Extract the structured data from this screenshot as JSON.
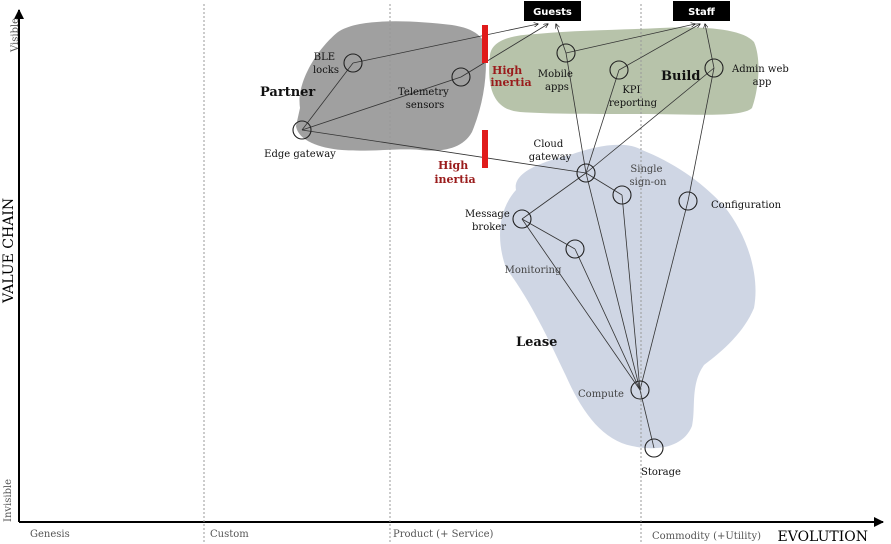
{
  "axes": {
    "x_title": "EVOLUTION",
    "y_title": "VALUE CHAIN",
    "y_top": "Visible",
    "y_bottom": "Invisible",
    "stages": [
      "Genesis",
      "Custom",
      "Product (+ Service)",
      "Commodity (+Utility)"
    ]
  },
  "regions": {
    "partner": "Partner",
    "build": "Build",
    "lease": "Lease"
  },
  "users": {
    "guests": "Guests",
    "staff": "Staff"
  },
  "inertia": {
    "top": [
      "High",
      "inertia"
    ],
    "bottom": [
      "High",
      "inertia"
    ]
  },
  "components": {
    "ble_locks": [
      "BLE",
      "locks"
    ],
    "telemetry_sensors": [
      "Telemetry",
      "sensors"
    ],
    "edge_gateway": [
      "Edge gateway"
    ],
    "mobile_apps": [
      "Mobile",
      "apps"
    ],
    "kpi_reporting": [
      "KPI",
      "reporting"
    ],
    "admin_web_app": [
      "Admin web",
      "app"
    ],
    "cloud_gateway": [
      "Cloud",
      "gateway"
    ],
    "single_sign_on": [
      "Single",
      "sign-on"
    ],
    "configuration": [
      "Configuration"
    ],
    "message_broker": [
      "Message",
      "broker"
    ],
    "monitoring": [
      "Monitoring"
    ],
    "compute": [
      "Compute"
    ],
    "storage": [
      "Storage"
    ]
  },
  "colors": {
    "partner_fill": "#8f8f8f",
    "build_fill": "#aab99b",
    "lease_fill": "#c7cfdf",
    "inertia_bar": "#e01b1b",
    "inertia_text": "#9a1c1c",
    "user_box": "#000000"
  }
}
